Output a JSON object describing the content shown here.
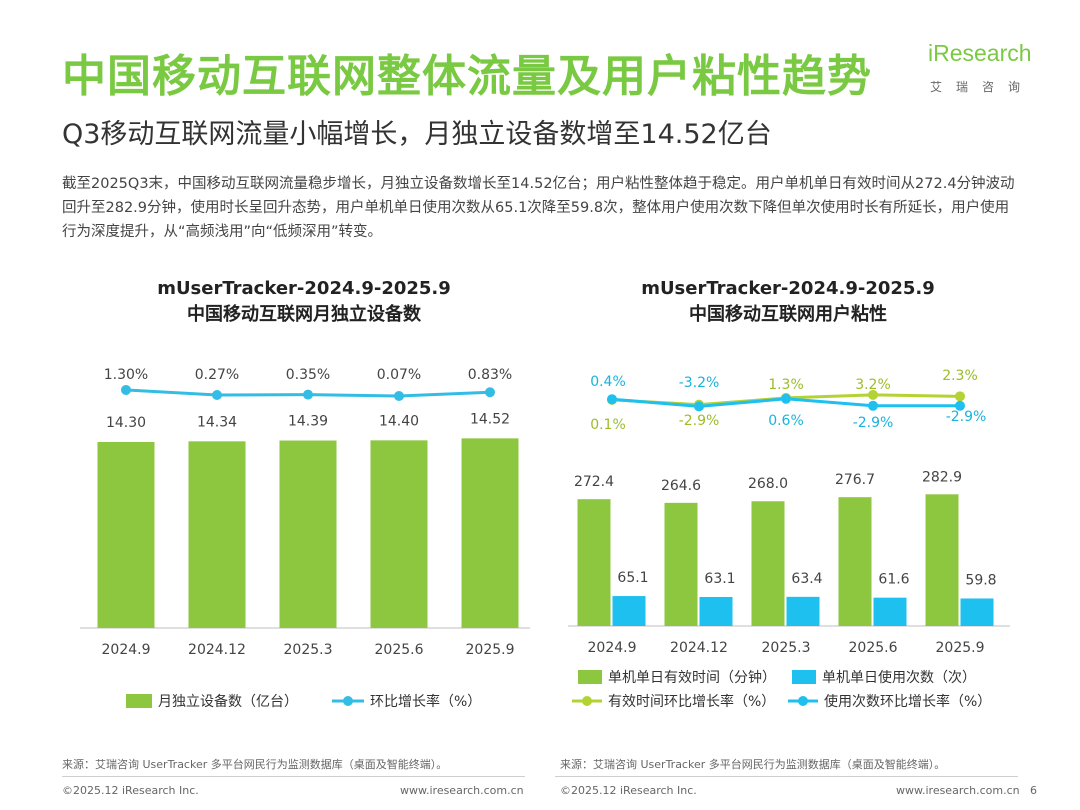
{
  "header": {
    "title": "中国移动互联网整体流量及用户粘性趋势",
    "subtitle": "Q3移动互联网流量小幅增长，月独立设备数增至14.52亿台",
    "logo_text": "iResearch",
    "logo_cn": "艾瑞咨询"
  },
  "summary": "截至2025Q3末，中国移动互联网流量稳步增长，月独立设备数增长至14.52亿台；用户粘性整体趋于稳定。用户单机单日有效时间从272.4分钟波动回升至282.9分钟，使用时长呈回升态势，用户单机单日使用次数从65.1次降至59.8次，整体用户使用次数下降但单次使用时长有所延长，用户使用行为深度提升，从“高频浅用”向“低频深用”转变。",
  "chart1_title": {
    "line1": "mUserTracker-2024.9-2025.9",
    "line2": "中国移动互联网月独立设备数"
  },
  "chart2_title": {
    "line1": "mUserTracker-2024.9-2025.9",
    "line2": "中国移动互联网用户粘性"
  },
  "chart_data": [
    {
      "type": "bar",
      "title": "中国移动互联网月独立设备数",
      "categories": [
        "2024.9",
        "2024.12",
        "2025.3",
        "2025.6",
        "2025.9"
      ],
      "series": [
        {
          "name": "月独立设备数（亿台）",
          "values": [
            14.3,
            14.34,
            14.39,
            14.4,
            14.52
          ],
          "labels": [
            "14.30",
            "14.34",
            "14.39",
            "14.40",
            "14.52"
          ],
          "color": "#8dc63f"
        },
        {
          "name": "环比增长率（%）",
          "type": "line",
          "values": [
            1.3,
            0.27,
            0.35,
            0.07,
            0.83
          ],
          "labels": [
            "1.30%",
            "0.27%",
            "0.35%",
            "0.07%",
            "0.83%"
          ],
          "color": "#33bde5"
        }
      ]
    },
    {
      "type": "bar",
      "title": "中国移动互联网用户粘性",
      "categories": [
        "2024.9",
        "2024.12",
        "2025.3",
        "2025.6",
        "2025.9"
      ],
      "series": [
        {
          "name": "单机单日有效时间（分钟）",
          "values": [
            272.4,
            264.6,
            268.0,
            276.7,
            282.9
          ],
          "labels": [
            "272.4",
            "264.6",
            "268.0",
            "276.7",
            "282.9"
          ],
          "color": "#8dc63f"
        },
        {
          "name": "单机单日使用次数（次）",
          "values": [
            65.1,
            63.1,
            63.4,
            61.6,
            59.8
          ],
          "labels": [
            "65.1",
            "63.1",
            "63.4",
            "61.6",
            "59.8"
          ],
          "color": "#1ec0ef"
        },
        {
          "name": "有效时间环比增长率（%）",
          "type": "line",
          "values": [
            0.1,
            -2.9,
            1.3,
            3.2,
            2.3
          ],
          "labels": [
            "0.1%",
            "-2.9%",
            "1.3%",
            "3.2%",
            "2.3%"
          ],
          "color": "#b3d334"
        },
        {
          "name": "使用次数环比增长率（%）",
          "type": "line",
          "values": [
            0.4,
            -3.2,
            0.6,
            -2.9,
            -2.9
          ],
          "labels": [
            "0.4%",
            "-3.2%",
            "0.6%",
            "-2.9%",
            "-2.9%"
          ],
          "color": "#1ec0ef"
        }
      ]
    }
  ],
  "source_text": "来源：艾瑞咨询 UserTracker 多平台网民行为监测数据库（桌面及智能终端）。",
  "copyright": "©2025.12 iResearch Inc.",
  "website": "www.iresearch.com.cn",
  "page_number": "6",
  "colors": {
    "accent": "#7ac943",
    "bar_green": "#8dc63f",
    "line_blue": "#33bde5",
    "bar_blue": "#1ec0ef",
    "line_lime": "#b3d334"
  }
}
